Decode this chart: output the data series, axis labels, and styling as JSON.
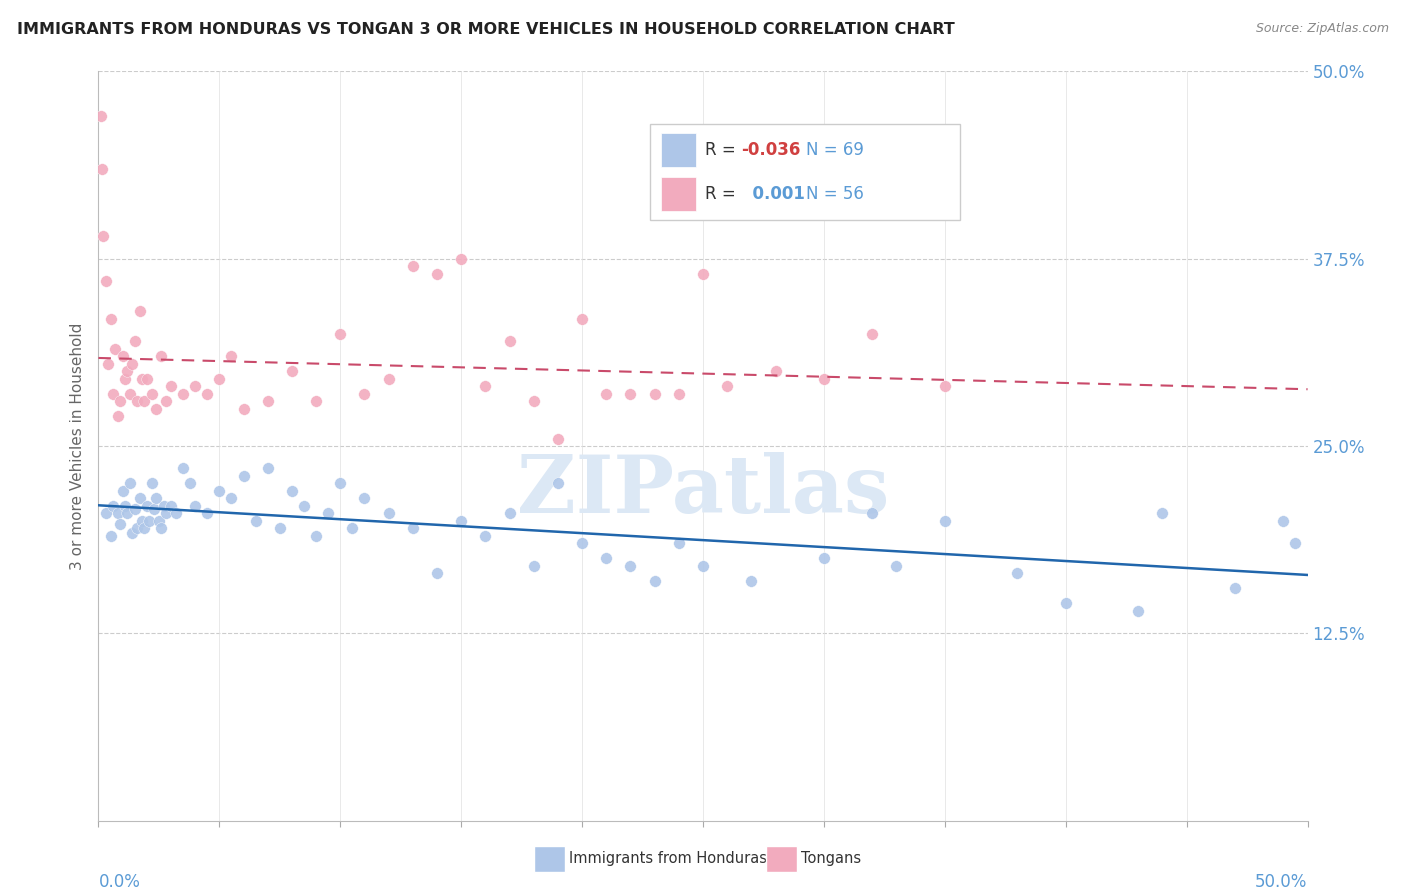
{
  "title": "IMMIGRANTS FROM HONDURAS VS TONGAN 3 OR MORE VEHICLES IN HOUSEHOLD CORRELATION CHART",
  "source": "Source: ZipAtlas.com",
  "ylabel": "3 or more Vehicles in Household",
  "legend_blue_label": "Immigrants from Honduras",
  "legend_pink_label": "Tongans",
  "r_blue": "-0.036",
  "n_blue": "69",
  "r_pink": "0.001",
  "n_pink": "56",
  "blue_color": "#aec6e8",
  "pink_color": "#f2abbe",
  "blue_line_color": "#2166ac",
  "pink_line_color": "#c94a6a",
  "watermark": "ZIPatlas",
  "blue_scatter_x": [
    0.3,
    0.5,
    0.6,
    0.8,
    0.9,
    1.0,
    1.1,
    1.2,
    1.3,
    1.4,
    1.5,
    1.6,
    1.7,
    1.8,
    1.9,
    2.0,
    2.1,
    2.2,
    2.3,
    2.4,
    2.5,
    2.6,
    2.7,
    2.8,
    3.0,
    3.2,
    3.5,
    3.8,
    4.0,
    4.5,
    5.0,
    5.5,
    6.0,
    6.5,
    7.0,
    7.5,
    8.0,
    8.5,
    9.0,
    9.5,
    10.0,
    10.5,
    11.0,
    12.0,
    13.0,
    14.0,
    15.0,
    16.0,
    17.0,
    18.0,
    19.0,
    20.0,
    21.0,
    22.0,
    23.0,
    24.0,
    25.0,
    27.0,
    30.0,
    32.0,
    33.0,
    35.0,
    38.0,
    40.0,
    43.0,
    44.0,
    47.0,
    49.0,
    49.5
  ],
  "blue_scatter_y": [
    20.5,
    19.0,
    21.0,
    20.5,
    19.8,
    22.0,
    21.0,
    20.5,
    22.5,
    19.2,
    20.8,
    19.5,
    21.5,
    20.0,
    19.5,
    21.0,
    20.0,
    22.5,
    20.8,
    21.5,
    20.0,
    19.5,
    21.0,
    20.5,
    21.0,
    20.5,
    23.5,
    22.5,
    21.0,
    20.5,
    22.0,
    21.5,
    23.0,
    20.0,
    23.5,
    19.5,
    22.0,
    21.0,
    19.0,
    20.5,
    22.5,
    19.5,
    21.5,
    20.5,
    19.5,
    16.5,
    20.0,
    19.0,
    20.5,
    17.0,
    22.5,
    18.5,
    17.5,
    17.0,
    16.0,
    18.5,
    17.0,
    16.0,
    17.5,
    20.5,
    17.0,
    20.0,
    16.5,
    14.5,
    14.0,
    20.5,
    15.5,
    20.0,
    18.5
  ],
  "pink_scatter_x": [
    0.1,
    0.15,
    0.2,
    0.3,
    0.4,
    0.5,
    0.6,
    0.7,
    0.8,
    0.9,
    1.0,
    1.1,
    1.2,
    1.3,
    1.4,
    1.5,
    1.6,
    1.7,
    1.8,
    1.9,
    2.0,
    2.2,
    2.4,
    2.6,
    2.8,
    3.0,
    3.5,
    4.0,
    4.5,
    5.0,
    5.5,
    6.0,
    7.0,
    8.0,
    9.0,
    10.0,
    11.0,
    12.0,
    13.0,
    14.0,
    15.0,
    16.0,
    17.0,
    18.0,
    19.0,
    20.0,
    21.0,
    22.0,
    23.0,
    24.0,
    25.0,
    26.0,
    28.0,
    30.0,
    32.0,
    35.0
  ],
  "pink_scatter_y": [
    47.0,
    43.5,
    39.0,
    36.0,
    30.5,
    33.5,
    28.5,
    31.5,
    27.0,
    28.0,
    31.0,
    29.5,
    30.0,
    28.5,
    30.5,
    32.0,
    28.0,
    34.0,
    29.5,
    28.0,
    29.5,
    28.5,
    27.5,
    31.0,
    28.0,
    29.0,
    28.5,
    29.0,
    28.5,
    29.5,
    31.0,
    27.5,
    28.0,
    30.0,
    28.0,
    32.5,
    28.5,
    29.5,
    37.0,
    36.5,
    37.5,
    29.0,
    32.0,
    28.0,
    25.5,
    33.5,
    28.5,
    28.5,
    28.5,
    28.5,
    36.5,
    29.0,
    30.0,
    29.5,
    32.5,
    29.0
  ]
}
